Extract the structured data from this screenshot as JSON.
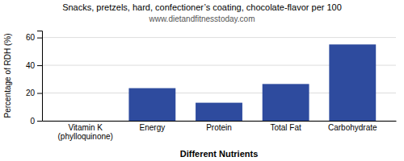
{
  "chart_data": {
    "type": "bar",
    "title": "Snacks, pretzels, hard, confectioner’s coating, chocolate-flavor per 100",
    "subtitle": "www.dietandfitnesstoday.com",
    "xlabel": "Different Nutrients",
    "ylabel": "Percentage of RDH (%)",
    "categories": [
      "Vitamin K (phylloquinone)",
      "Energy",
      "Protein",
      "Total Fat",
      "Carbohydrate"
    ],
    "values": [
      0,
      23.5,
      13.0,
      26.5,
      55.0
    ],
    "color": "#2e4b9e",
    "ylim": [
      0,
      65
    ],
    "yticks": [
      0,
      20,
      40,
      60
    ],
    "grid": true
  }
}
